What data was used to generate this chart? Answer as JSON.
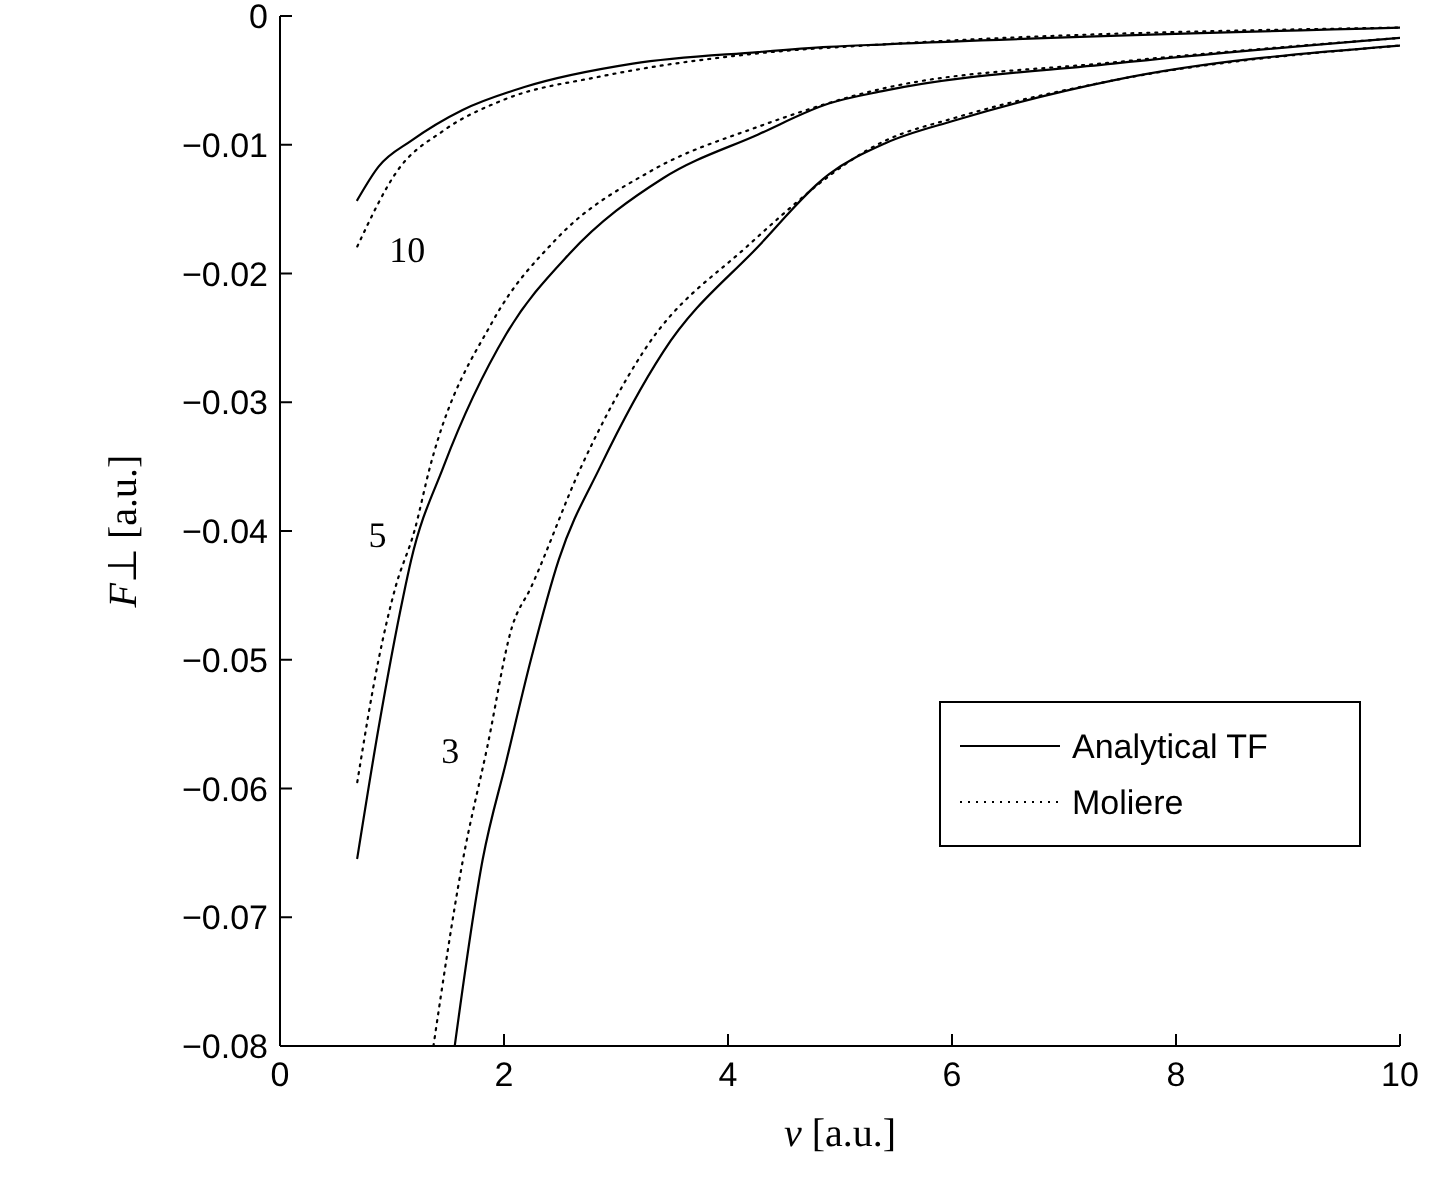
{
  "chart_data": {
    "type": "line",
    "xlabel": "v [a.u.]",
    "ylabel": "F⊥ [a.u.]",
    "xlim": [
      0,
      10
    ],
    "ylim": [
      -0.08,
      0
    ],
    "xticks": [
      0,
      2,
      4,
      6,
      8,
      10
    ],
    "yticks": [
      {
        "value": -0.08,
        "label": "−0.08"
      },
      {
        "value": -0.07,
        "label": "−0.07"
      },
      {
        "value": -0.06,
        "label": "−0.06"
      },
      {
        "value": -0.05,
        "label": "−0.05"
      },
      {
        "value": -0.04,
        "label": "−0.04"
      },
      {
        "value": -0.03,
        "label": "−0.03"
      },
      {
        "value": -0.02,
        "label": "−0.02"
      },
      {
        "value": -0.01,
        "label": "−0.01"
      },
      0
    ],
    "grid": false,
    "legend": "bottom right",
    "series": [
      {
        "name": "Analytical TF",
        "color": "#000000",
        "line_style": "solid",
        "x": [
          0.69,
          0.88,
          1.17,
          1.63,
          2.19,
          3.15,
          4.27,
          4.9,
          5.4,
          10
        ],
        "values": [
          -0.0143,
          -0.0117,
          -0.0097,
          -0.0073,
          -0.0055,
          -0.0037,
          -0.0028,
          -0.0024,
          -0.0022,
          -0.0009
        ]
      },
      {
        "name": "Moliere",
        "color": "#000000",
        "line_style": "dotted",
        "x": [
          0.69,
          1.05,
          1.46,
          2.0,
          2.86,
          4.27,
          5.4,
          10
        ],
        "values": [
          -0.0179,
          -0.012,
          -0.0089,
          -0.0065,
          -0.0047,
          -0.0029,
          -0.0022,
          -0.0009
        ]
      },
      {
        "color": "#000000",
        "line_style": "solid",
        "x": [
          0.69,
          0.88,
          1.1,
          1.17,
          1.46,
          2.02,
          2.58,
          3.42,
          4.27,
          4.9,
          5.4,
          7.44,
          10
        ],
        "values": [
          -0.0654,
          -0.0553,
          -0.0451,
          -0.0423,
          -0.035,
          -0.0247,
          -0.0185,
          -0.0126,
          -0.0092,
          -0.0068,
          -0.0058,
          -0.0037,
          -0.0017
        ]
      },
      {
        "color": "#000000",
        "line_style": "dotted",
        "x": [
          0.69,
          0.88,
          1.03,
          1.2,
          1.34,
          1.9,
          2.47,
          3.32,
          4.27,
          5.4,
          7.44,
          10
        ],
        "values": [
          -0.0595,
          -0.05,
          -0.0444,
          -0.04,
          -0.035,
          -0.0237,
          -0.0173,
          -0.012,
          -0.0086,
          -0.0056,
          -0.0036,
          -0.0017
        ]
      },
      {
        "color": "#000000",
        "line_style": "solid",
        "x": [
          1.56,
          1.81,
          2.02,
          2.24,
          2.49,
          2.86,
          3.42,
          4.27,
          4.9,
          5.4,
          6.03,
          7.44,
          10
        ],
        "values": [
          -0.08,
          -0.0655,
          -0.0579,
          -0.05,
          -0.0422,
          -0.035,
          -0.0261,
          -0.0179,
          -0.0123,
          -0.0099,
          -0.0081,
          -0.005,
          -0.0023
        ]
      },
      {
        "color": "#000000",
        "line_style": "dotted",
        "x": [
          1.37,
          1.63,
          1.85,
          2.07,
          2.24,
          2.69,
          3.25,
          4.17,
          5.4,
          6.03,
          7.44,
          10
        ],
        "values": [
          -0.08,
          -0.0657,
          -0.0568,
          -0.0475,
          -0.0444,
          -0.035,
          -0.026,
          -0.0179,
          -0.0097,
          -0.0079,
          -0.005,
          -0.0023
        ]
      }
    ],
    "annotations": [
      {
        "text": "10",
        "x": 0.69,
        "y": -0.0179
      },
      {
        "text": "5",
        "x": 1.2,
        "y": -0.04
      },
      {
        "text": "3",
        "x": 1.85,
        "y": -0.0568
      }
    ]
  }
}
